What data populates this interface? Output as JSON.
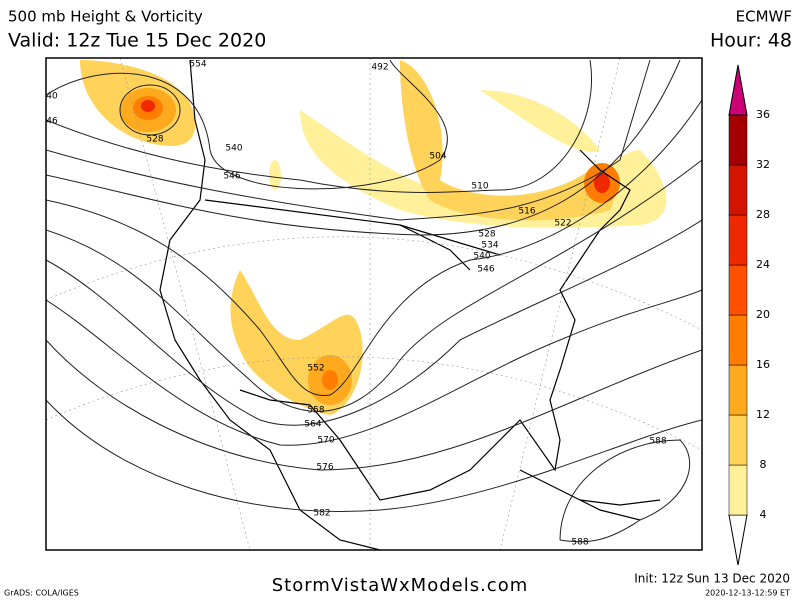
{
  "header": {
    "title": "500 mb Height & Vorticity",
    "valid": "Valid: 12z Tue 15 Dec 2020",
    "model": "ECMWF",
    "hour": "Hour: 48"
  },
  "contour_labels": [
    "554",
    "492",
    "528",
    "540",
    "546",
    "504",
    "510",
    "516",
    "522",
    "528",
    "534",
    "540",
    "546",
    "552",
    "558",
    "564",
    "570",
    "576",
    "582",
    "588",
    "588",
    "40",
    "46"
  ],
  "colorbar": {
    "levels": [
      4,
      8,
      12,
      16,
      20,
      24,
      28,
      32,
      36
    ],
    "colors": [
      "#fff099",
      "#ffd25a",
      "#ffaa1e",
      "#ff7d00",
      "#ff5000",
      "#f02800",
      "#d21400",
      "#a50000",
      "#cc0077"
    ]
  },
  "footer": {
    "site": "StormVistaWxModels.com",
    "init": "Init: 12z Sun 13 Dec 2020",
    "grads": "GrADS: COLA/IGES",
    "timestamp": "2020-12-13-12:59 ET"
  }
}
